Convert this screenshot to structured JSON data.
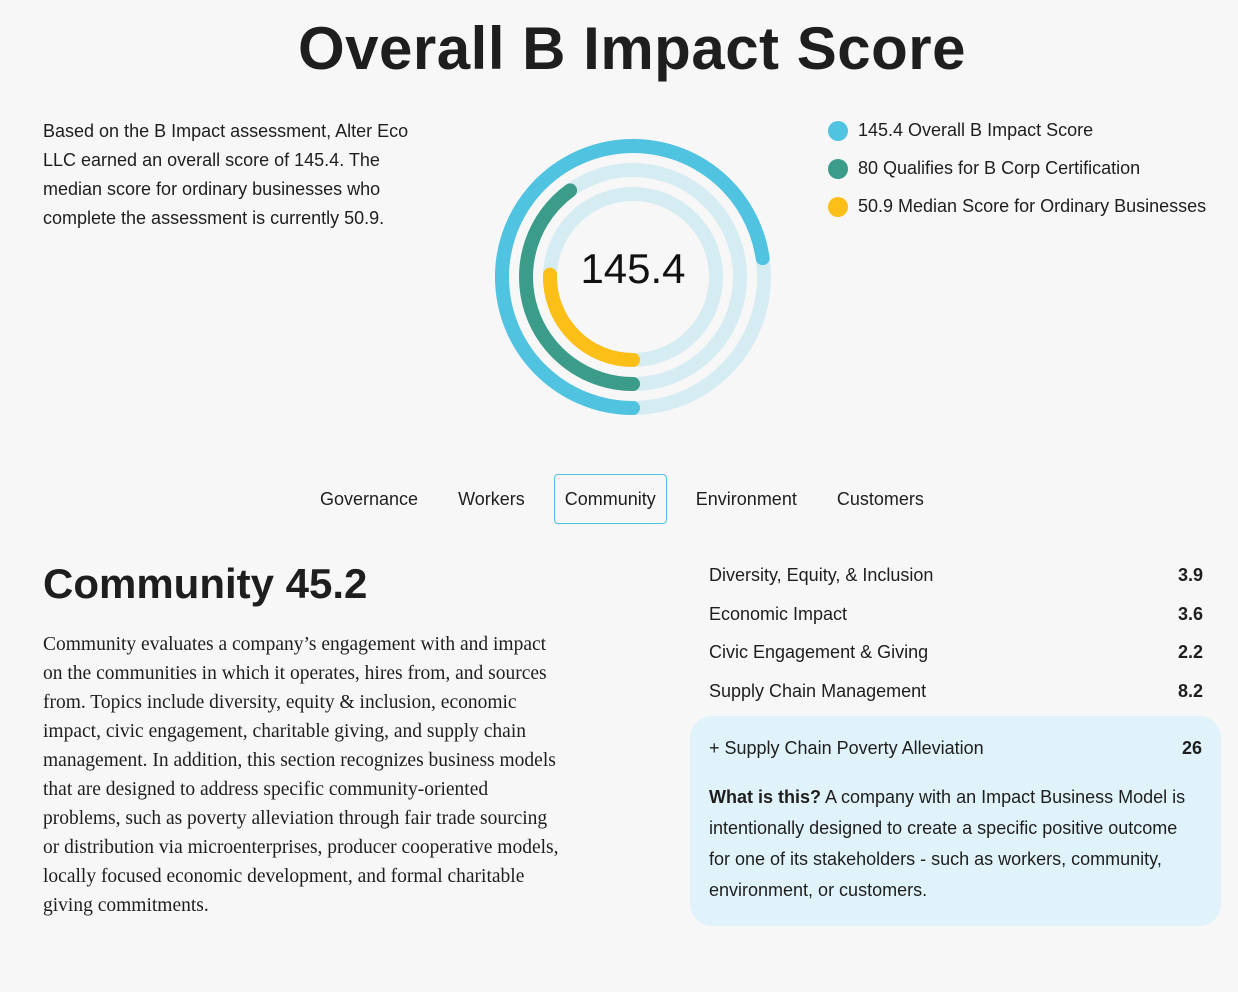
{
  "header": {
    "title": "Overall B Impact Score"
  },
  "intro": {
    "text": "Based on the B Impact assessment, Alter Eco LLC earned an overall score of 145.4. The median score for ordinary businesses who complete the assessment is currently 50.9."
  },
  "gauge": {
    "center_value": "145.4",
    "max": 200,
    "rings": [
      {
        "name": "overall",
        "value": 145.4,
        "color": "#4fc3e0"
      },
      {
        "name": "certification",
        "value": 80,
        "color": "#3a9c89"
      },
      {
        "name": "median",
        "value": 50.9,
        "color": "#fbbf17"
      }
    ],
    "track_color": "#d5ecf3"
  },
  "legend": {
    "items": [
      {
        "label": "145.4 Overall B Impact Score",
        "color": "#4fc3e0"
      },
      {
        "label": "80 Qualifies for B Corp Certification",
        "color": "#3a9c89"
      },
      {
        "label": "50.9 Median Score for Ordinary Businesses",
        "color": "#fbbf17"
      }
    ]
  },
  "tabs": [
    {
      "label": "Governance",
      "active": false
    },
    {
      "label": "Workers",
      "active": false
    },
    {
      "label": "Community",
      "active": true
    },
    {
      "label": "Environment",
      "active": false
    },
    {
      "label": "Customers",
      "active": false
    }
  ],
  "section": {
    "title": "Community 45.2",
    "description": "Community evaluates a company’s engagement with and impact on the communities in which it operates, hires from, and sources from. Topics include diversity, equity & inclusion, economic impact, civic engagement, charitable giving, and supply chain management. In addition, this section recognizes business models that are designed to address specific community-oriented problems, such as poverty alleviation through fair trade sourcing or distribution via microenterprises, producer cooperative models, locally focused economic development, and formal charitable giving commitments."
  },
  "scores": [
    {
      "label": "Diversity, Equity, & Inclusion",
      "value": "3.9"
    },
    {
      "label": "Economic Impact",
      "value": "3.6"
    },
    {
      "label": "Civic Engagement & Giving",
      "value": "2.2"
    },
    {
      "label": "Supply Chain Management",
      "value": "8.2"
    }
  ],
  "callout": {
    "label": "+ Supply Chain Poverty Alleviation",
    "value": "26",
    "what_label": "What is this?",
    "what_text": " A company with an Impact Business Model is intentionally designed to create a specific positive outcome for one of its stakeholders - such as workers, community, environment, or customers."
  }
}
